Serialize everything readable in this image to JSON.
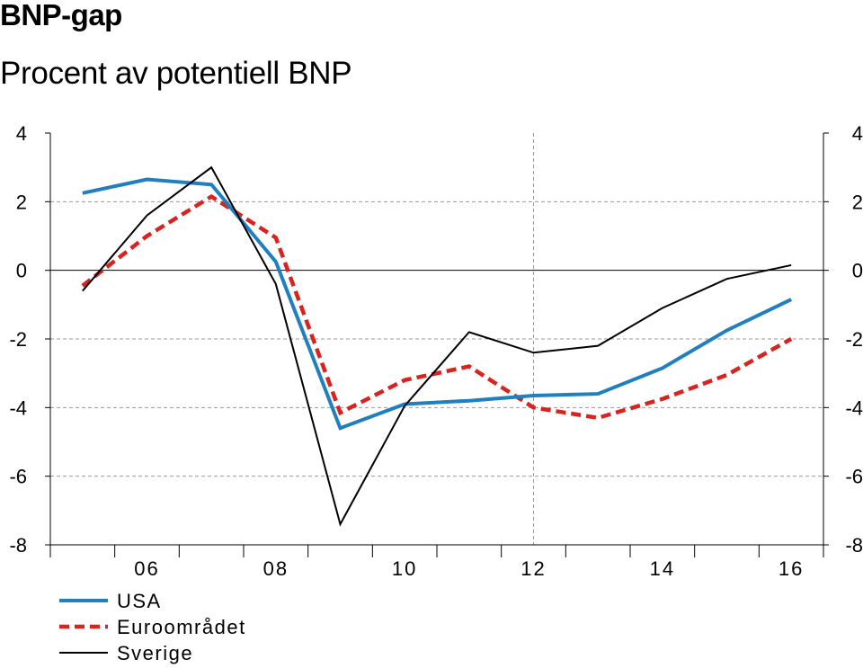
{
  "chart_data": {
    "type": "line",
    "title": "BNP-gap",
    "subtitle": "Procent av potentiell BNP",
    "x": [
      2005,
      2006,
      2007,
      2008,
      2009,
      2010,
      2011,
      2012,
      2013,
      2014,
      2015,
      2016
    ],
    "xticks": [
      2006,
      2008,
      2010,
      2012,
      2014,
      2016
    ],
    "xtick_labels": [
      "06",
      "08",
      "10",
      "12",
      "14",
      "16"
    ],
    "yticks": [
      4,
      2,
      0,
      -2,
      -4,
      -6,
      -8
    ],
    "ytick_labels": [
      "4",
      "2",
      "0",
      "-2",
      "-4",
      "-6",
      "-8"
    ],
    "ylim": [
      -8,
      4
    ],
    "xlim": [
      2004.5,
      2016.5
    ],
    "series": [
      {
        "name": "USA",
        "color": "#1f7fbf",
        "style": "solid-thick",
        "values": [
          2.25,
          2.65,
          2.5,
          0.25,
          -4.6,
          -3.9,
          -3.8,
          -3.65,
          -3.6,
          -2.85,
          -1.75,
          -0.85
        ]
      },
      {
        "name": "Euroområdet",
        "color": "#d9231f",
        "style": "dashed",
        "values": [
          -0.45,
          1.0,
          2.15,
          0.95,
          -4.15,
          -3.2,
          -2.8,
          -4.0,
          -4.3,
          -3.75,
          -3.05,
          -2.0
        ]
      },
      {
        "name": "Sverige",
        "color": "#000000",
        "style": "solid-thin",
        "values": [
          -0.6,
          1.6,
          3.0,
          -0.4,
          -7.4,
          -3.95,
          -1.8,
          -2.4,
          -2.2,
          -1.1,
          -0.25,
          0.15
        ]
      }
    ],
    "grid": "dashed horizontal at y ticks, vertical dashed at 2012",
    "legend_position": "bottom-left"
  }
}
